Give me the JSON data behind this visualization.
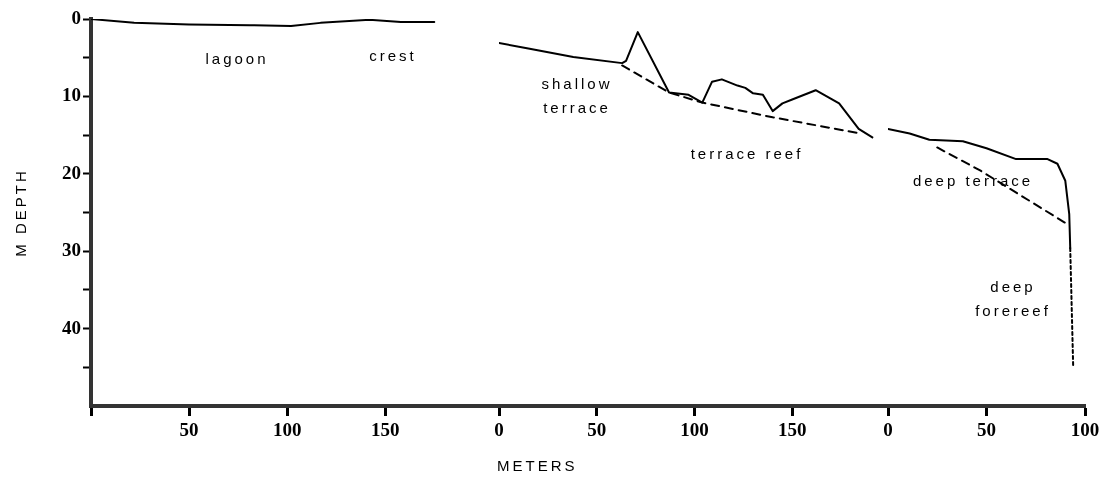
{
  "chart_data": [
    {
      "type": "line",
      "ylabel": "M DEPTH",
      "xlim": [
        0,
        208
      ],
      "ylim": [
        50,
        0
      ],
      "xticks": [
        {
          "value": 0,
          "label": null
        },
        50,
        100,
        150
      ],
      "yticks": [
        0,
        {
          "value": 5,
          "label": null
        },
        10,
        {
          "value": 15,
          "label": null
        },
        20,
        {
          "value": 25,
          "label": null
        },
        30,
        {
          "value": 35,
          "label": null
        },
        40,
        {
          "value": 45,
          "label": null
        }
      ],
      "series": [
        {
          "color": "#000000",
          "line_style": "solid",
          "x": [
            0,
            22,
            50,
            81,
            102,
            117,
            142,
            158,
            175
          ],
          "values": [
            0,
            0.5,
            0.7,
            0.8,
            0.9,
            0.5,
            0.1,
            0.4,
            0.4
          ]
        }
      ],
      "annotations": [
        "lagoon",
        "crest"
      ],
      "grid": false,
      "legend": false,
      "marker": "none"
    },
    {
      "type": "line",
      "xlabel": "METERS",
      "xlim": [
        0,
        199
      ],
      "ylim": [
        50,
        0
      ],
      "xticks": [
        0,
        50,
        100,
        150
      ],
      "tick_labels": "x",
      "series": [
        {
          "color": "#000000",
          "line_style": "solid",
          "x": [
            0,
            15,
            38,
            63,
            65,
            71,
            87,
            97,
            104,
            109,
            114,
            122,
            126,
            130,
            135,
            140,
            145,
            150,
            162,
            174,
            184,
            191
          ],
          "values": [
            3.1,
            3.8,
            4.9,
            5.7,
            5.4,
            1.7,
            9.5,
            9.8,
            10.8,
            8.1,
            7.8,
            8.6,
            8.9,
            9.6,
            9.8,
            11.9,
            10.9,
            10.4,
            9.2,
            10.9,
            14.2,
            15.3
          ]
        },
        {
          "color": "#000000",
          "line_style": "dashed",
          "x": [
            63,
            87,
            104,
            140,
            183
          ],
          "values": [
            6.0,
            9.5,
            10.8,
            12.7,
            14.7
          ]
        }
      ],
      "annotations": [
        "shallow\nterrace",
        "terrace reef"
      ],
      "grid": false,
      "legend": false,
      "marker": "none"
    },
    {
      "type": "line",
      "xlim": [
        0,
        100
      ],
      "ylim": [
        50,
        0
      ],
      "xticks": [
        0,
        50,
        100
      ],
      "tick_labels": "x",
      "series": [
        {
          "color": "#000000",
          "line_style": "solid",
          "x": [
            0,
            11,
            21,
            38,
            50,
            65,
            81,
            86,
            90,
            92,
            92.5
          ],
          "values": [
            14.2,
            14.8,
            15.6,
            15.8,
            16.7,
            18.1,
            18.1,
            18.7,
            20.9,
            25.2,
            29.6
          ]
        },
        {
          "color": "#000000",
          "line_style": "dashed",
          "x": [
            25,
            47,
            91
          ],
          "values": [
            16.6,
            19.6,
            26.5
          ]
        },
        {
          "color": "#000000",
          "line_style": "dotted",
          "x": [
            92.5,
            94
          ],
          "values": [
            29.6,
            44.9
          ]
        }
      ],
      "annotations": [
        "deep terrace",
        "deep\nforereef"
      ],
      "grid": false,
      "legend": false,
      "marker": "none"
    }
  ]
}
